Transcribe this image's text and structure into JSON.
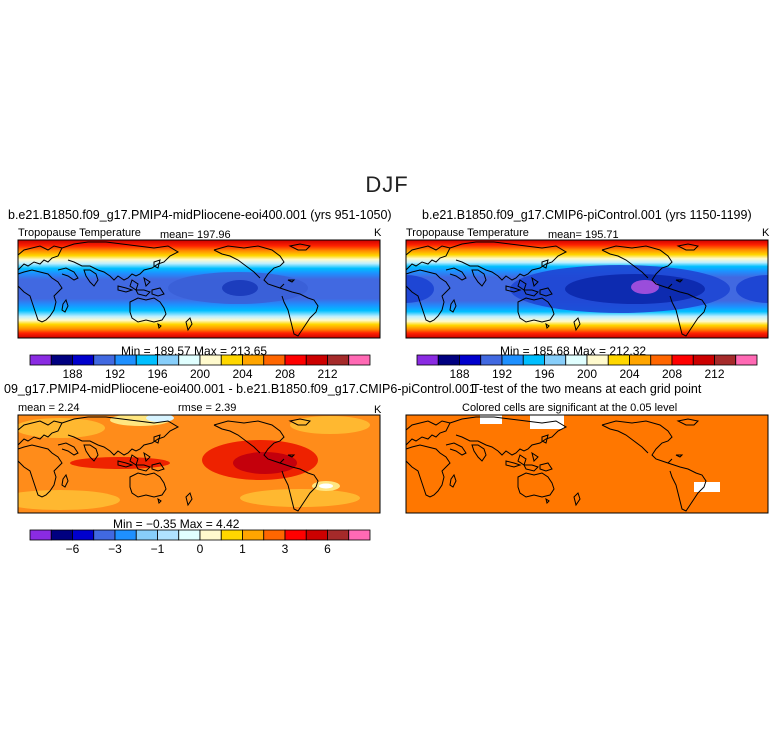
{
  "figure": {
    "title": "DJF"
  },
  "panels": {
    "midpliocene": {
      "case": "b.e21.B1850.f09_g17.PMIP4-midPliocene-eoi400.001 (yrs 951-1050)",
      "variable": "Tropopause Temperature",
      "mean_text": "mean= 197.96",
      "units": "K",
      "minmax_text": "Min = 189.57 Max = 213.65"
    },
    "picontrol": {
      "case": "b.e21.B1850.f09_g17.CMIP6-piControl.001 (yrs 1150-1199)",
      "variable": "Tropopause Temperature",
      "mean_text": "mean= 195.71",
      "units": "K",
      "minmax_text": "Min = 185.68 Max = 212.32"
    },
    "difference": {
      "case": "09_g17.PMIP4-midPliocene-eoi400.001 - b.e21.B1850.f09_g17.CMIP6-piControl.001",
      "mean_text": "mean =   2.24",
      "rmse_text": "rmse =   2.39",
      "units": "K",
      "minmax_text": "Min =  −0.35 Max =    4.42"
    },
    "ttest": {
      "title": "T-test of the two means at each grid point",
      "note": "Colored cells are significant at the 0.05 level"
    }
  },
  "chart_data": [
    {
      "type": "heatmap",
      "panel": "midpliocene",
      "title": "b.e21.B1850.f09_g17.PMIP4-midPliocene-eoi400.001 (yrs 951-1050)",
      "variable": "Tropopause Temperature",
      "units": "K",
      "mean": 197.96,
      "min": 189.57,
      "max": 213.65,
      "colorbar_ticks": [
        "188",
        "192",
        "196",
        "200",
        "204",
        "208",
        "212"
      ],
      "colorbar_colors": [
        "#8a2be2",
        "#000080",
        "#0000cd",
        "#4169e1",
        "#1e90ff",
        "#00bfff",
        "#87cefa",
        "#e0ffff",
        "#fffacd",
        "#ffd700",
        "#ffa500",
        "#ff6600",
        "#ff0000",
        "#cc0000",
        "#a52a2a",
        "#ff69b4"
      ]
    },
    {
      "type": "heatmap",
      "panel": "picontrol",
      "title": "b.e21.B1850.f09_g17.CMIP6-piControl.001 (yrs 1150-1199)",
      "variable": "Tropopause Temperature",
      "units": "K",
      "mean": 195.71,
      "min": 185.68,
      "max": 212.32,
      "colorbar_ticks": [
        "188",
        "192",
        "196",
        "200",
        "204",
        "208",
        "212"
      ],
      "colorbar_colors": [
        "#8a2be2",
        "#000080",
        "#0000cd",
        "#4169e1",
        "#1e90ff",
        "#00bfff",
        "#87cefa",
        "#e0ffff",
        "#fffacd",
        "#ffd700",
        "#ffa500",
        "#ff6600",
        "#ff0000",
        "#cc0000",
        "#a52a2a",
        "#ff69b4"
      ]
    },
    {
      "type": "heatmap",
      "panel": "difference",
      "title": "09_g17.PMIP4-midPliocene-eoi400.001 - b.e21.B1850.f09_g17.CMIP6-piControl.001",
      "units": "K",
      "mean": 2.24,
      "rmse": 2.39,
      "min": -0.35,
      "max": 4.42,
      "colorbar_ticks": [
        "−6",
        "−3",
        "−1",
        "0",
        "1",
        "3",
        "6"
      ],
      "colorbar_colors": [
        "#8a2be2",
        "#000080",
        "#0000cd",
        "#4169e1",
        "#1e90ff",
        "#87cefa",
        "#b0e2ff",
        "#e0ffff",
        "#fffacd",
        "#ffd700",
        "#ffa500",
        "#ff6600",
        "#ff0000",
        "#cc0000",
        "#a52a2a",
        "#ff69b4"
      ]
    },
    {
      "type": "heatmap",
      "panel": "ttest",
      "title": "T-test of the two means at each grid point",
      "note": "Colored cells are significant at the 0.05 level",
      "fill_color": "#ff7700"
    }
  ]
}
